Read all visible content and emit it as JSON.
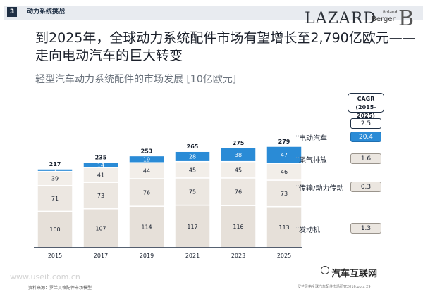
{
  "header": {
    "section_number": "3",
    "section_title": "动力系统挑战",
    "logo_lazard": "LAZARD",
    "logo_rb_small": "Roland",
    "logo_rb_big": "Berger",
    "logo_rb_glyph": "B"
  },
  "headline": "到2025年，全球动力系统配件市场有望增长至2,790亿欧元——走向电动汽车的巨大转变",
  "colors": {
    "engine": "#e6e0d9",
    "powertrain": "#ece7e1",
    "exhaust": "#f2eee9",
    "ev": "#2a8bd6",
    "divider": "#ffffff",
    "axis": "#1f2f44"
  },
  "chart_data": {
    "type": "bar",
    "title": "轻型汽车动力系统配件的市场发展 [10亿欧元]",
    "categories": [
      "2015",
      "2017",
      "2019",
      "2021",
      "2023",
      "2025"
    ],
    "series": [
      {
        "name": "发动机",
        "values": [
          100,
          107,
          114,
          117,
          116,
          113
        ]
      },
      {
        "name": "传输/动力传动",
        "values": [
          71,
          73,
          76,
          75,
          76,
          73
        ]
      },
      {
        "name": "尾气排放",
        "values": [
          39,
          41,
          44,
          45,
          45,
          46
        ]
      },
      {
        "name": "电动汽车",
        "values": [
          7,
          14,
          19,
          28,
          38,
          47
        ]
      }
    ],
    "totals": [
      217,
      235,
      253,
      265,
      275,
      279
    ],
    "ylim": [
      0,
      290
    ],
    "stacked": true,
    "legend_placement": "right",
    "cagr": {
      "title": "CAGR",
      "period": "(2015-2025)",
      "total": "2.5",
      "items": [
        {
          "series": "电动汽车",
          "value": "20.4"
        },
        {
          "series": "尾气排放",
          "value": "1.6"
        },
        {
          "series": "传输/动力传动",
          "value": "0.3"
        },
        {
          "series": "发动机",
          "value": "1.3"
        }
      ]
    }
  },
  "footer": {
    "source": "资料来源：罗兰贝格配件市场模型",
    "file": "罗兰贝格全球汽车配件市场研究2016.pptx   29"
  },
  "watermarks": {
    "left": "www.useit.com.cn",
    "right": "汽车互联网"
  }
}
